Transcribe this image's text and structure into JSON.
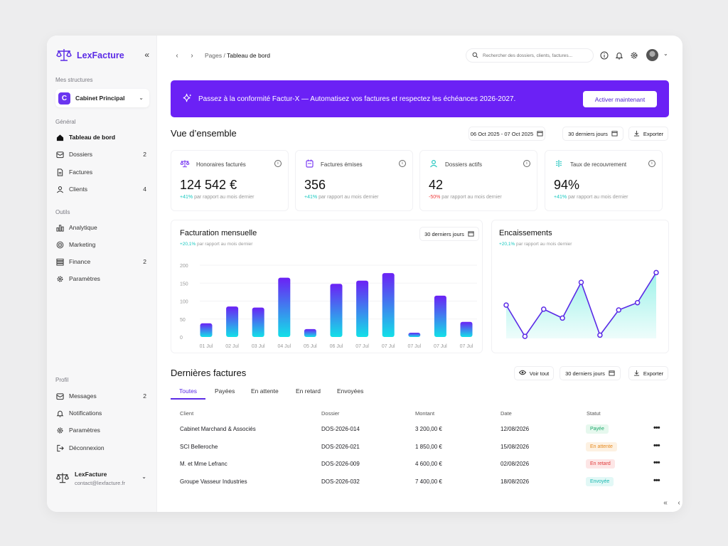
{
  "app": {
    "name": "LexFacture"
  },
  "sidebar": {
    "structures_label": "Mes structures",
    "workspace": {
      "initial": "C",
      "name": "Cabinet Principal"
    },
    "general_label": "Général",
    "general_items": [
      {
        "label": "Tableau de bord",
        "count": ""
      },
      {
        "label": "Dossiers",
        "count": "2"
      },
      {
        "label": "Factures",
        "count": ""
      },
      {
        "label": "Clients",
        "count": "4"
      }
    ],
    "tools_label": "Outils",
    "tools_items": [
      {
        "label": "Analytique",
        "count": ""
      },
      {
        "label": "Marketing",
        "count": ""
      },
      {
        "label": "Finance",
        "count": "2"
      },
      {
        "label": "Paramètres",
        "count": ""
      }
    ],
    "profile_label": "Profil",
    "profile_items": [
      {
        "label": "Messages",
        "count": "2"
      },
      {
        "label": "Notifications",
        "count": ""
      },
      {
        "label": "Paramètres",
        "count": ""
      },
      {
        "label": "Déconnexion",
        "count": ""
      }
    ],
    "user": {
      "name": "LexFacture",
      "email": "contact@lexfacture.fr"
    }
  },
  "topbar": {
    "breadcrumb_parent": "Pages",
    "breadcrumb_sep": " / ",
    "breadcrumb_current": "Tableau de bord",
    "search_placeholder": "Rechercher des dossiers, clients, factures..."
  },
  "banner": {
    "text": "Passez à la conformité Factur-X — Automatisez vos factures et respectez les échéances 2026-2027.",
    "button": "Activer maintenant"
  },
  "overview": {
    "title": "Vue d’ensemble",
    "date_range": "06 Oct 2025 - 07 Oct 2025",
    "period": "30 derniers jours",
    "export": "Exporter"
  },
  "kpis": [
    {
      "title": "Honoraires facturés",
      "value": "124 542 €",
      "delta": "+41%",
      "delta_dir": "up",
      "delta_text": "par rapport au mois dernier",
      "icon": "scale-icon"
    },
    {
      "title": "Factures émises",
      "value": "356",
      "delta": "+41%",
      "delta_dir": "up",
      "delta_text": "par rapport au mois dernier",
      "icon": "invoice-icon"
    },
    {
      "title": "Dossiers actifs",
      "value": "42",
      "delta": "-50%",
      "delta_dir": "down",
      "delta_text": "par rapport au mois dernier",
      "icon": "user-icon"
    },
    {
      "title": "Taux de recouvrement",
      "value": "94%",
      "delta": "+41%",
      "delta_dir": "up",
      "delta_text": "par rapport au mois dernier",
      "icon": "recovery-icon"
    }
  ],
  "monthly_card": {
    "title": "Facturation mensuelle",
    "delta": "+20,1%",
    "delta_text": "par rapport au mois dernier",
    "period": "30 derniers jours"
  },
  "cash_card": {
    "title": "Encaissements",
    "delta": "+20,1%",
    "delta_text": "par rapport au mois dernier"
  },
  "chart_data": [
    {
      "type": "bar",
      "categories": [
        "01 Jul",
        "02 Jul",
        "03 Jul",
        "04 Jul",
        "05 Jul",
        "06 Jul",
        "07 Jul",
        "07 Jul",
        "07 Jul",
        "07 Jul",
        "07 Jul"
      ],
      "values": [
        38,
        85,
        82,
        165,
        22,
        148,
        157,
        178,
        12,
        115,
        42
      ],
      "yticks": [
        "200",
        "150",
        "100",
        "50",
        "0"
      ],
      "ylim": [
        0,
        200
      ],
      "title": "Facturation mensuelle",
      "colors": {
        "top": "#6b21f5",
        "bottom": "#13e0e8"
      }
    },
    {
      "type": "area",
      "values": [
        82,
        5,
        72,
        50,
        138,
        8,
        70,
        88,
        162
      ],
      "ylim": [
        0,
        175
      ],
      "title": "Encaissements",
      "colors": {
        "line": "#5b2be6",
        "fill": "#8ef0e6"
      }
    }
  ],
  "invoices": {
    "title": "Dernières factures",
    "view_all": "Voir tout",
    "period": "30 derniers jours",
    "export": "Exporter",
    "tabs": [
      "Toutes",
      "Payées",
      "En attente",
      "En retard",
      "Envoyées"
    ],
    "columns": [
      "Client",
      "Dossier",
      "Montant",
      "Date",
      "Statut"
    ],
    "rows": [
      {
        "client": "Cabinet Marchand & Associés",
        "dossier": "DOS-2026-014",
        "montant": "3 200,00 €",
        "date": "12/08/2026",
        "statut": "Payée",
        "status_color": "#1aa86a",
        "status_bg": "#e6f8ee"
      },
      {
        "client": "SCI Belleroche",
        "dossier": "DOS-2026-021",
        "montant": "1 850,00 €",
        "date": "15/08/2026",
        "statut": "En attente",
        "status_color": "#e58a1f",
        "status_bg": "#fdf1e2"
      },
      {
        "client": "M. et Mme Lefranc",
        "dossier": "DOS-2026-009",
        "montant": "4 600,00 €",
        "date": "02/08/2026",
        "statut": "En retard",
        "status_color": "#e03a3a",
        "status_bg": "#fde6e6"
      },
      {
        "client": "Groupe Vasseur Industries",
        "dossier": "DOS-2026-032",
        "montant": "7 400,00 €",
        "date": "18/08/2026",
        "statut": "Envoyée",
        "status_color": "#18b8b0",
        "status_bg": "#e2f8f6"
      }
    ]
  },
  "colors": {
    "accent": "#5b2be6",
    "banner": "#6b21f5",
    "teal": "#16c8c0",
    "danger": "#ee4040"
  }
}
